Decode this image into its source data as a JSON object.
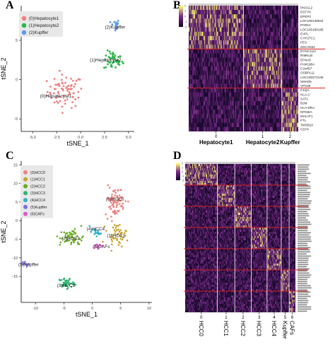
{
  "panels": {
    "a": "A",
    "b": "B",
    "c": "C",
    "d": "D"
  },
  "colors": {
    "legend_box": "#e8e8e8",
    "hm_low": "#1a0a2e",
    "hm_mid": "#7a2a8a",
    "hm_high": "#f5f56a",
    "divider": "#d42020"
  },
  "chart_data": [
    {
      "type": "scatter",
      "panel": "A",
      "xlabel": "tSNE_1",
      "ylabel": "tSNE_2",
      "xlim": [
        -6.2,
        5.6
      ],
      "ylim": [
        -6.6,
        9.4
      ],
      "xticks": [
        -5.0,
        -2.5,
        0.0,
        2.5,
        5.0
      ],
      "xtick_labels": [
        "-5.0",
        "-2.5",
        "0.0",
        "2.5",
        "5.0"
      ],
      "yticks": [
        -5,
        0,
        5
      ],
      "ytick_labels": [
        "-5",
        "0",
        "5"
      ],
      "legend_position": "top-left",
      "series": [
        {
          "name": "(0)Hepatocyte1",
          "color": "#f08080",
          "center": [
            -1.6,
            -1.5
          ],
          "spread": [
            1.7,
            1.9
          ],
          "n": 75
        },
        {
          "name": "(1)Hepatocyte2",
          "color": "#2db84a",
          "center": [
            3.4,
            2.4
          ],
          "spread": [
            0.9,
            1.1
          ],
          "n": 45
        },
        {
          "name": "(2)Kupffer",
          "color": "#5e9be8",
          "center": [
            3.6,
            6.9
          ],
          "spread": [
            0.4,
            0.7
          ],
          "n": 20
        }
      ],
      "cluster_labels": [
        {
          "text": "(0)Hepatocyte1",
          "x": -2.6,
          "y": -2.3
        },
        {
          "text": "(1)Hepatocyte2",
          "x": 2.6,
          "y": 2.3
        },
        {
          "text": "(2)Kupffer",
          "x": 3.6,
          "y": 6.5
        }
      ]
    },
    {
      "type": "heatmap",
      "panel": "B",
      "groups": [
        "0",
        "1",
        "2"
      ],
      "group_labels": [
        "Hepatocyte1",
        "Hepatocyte2",
        "Kupffer"
      ],
      "group_widths": [
        0.5,
        0.35,
        0.15
      ],
      "genes": [
        "PKD1L2",
        "DSTYK",
        "DPEP2",
        "LOC100136522",
        "PARK2",
        "LOC100190195",
        "EVPL",
        "CYP27C1",
        "FES",
        "ZSCAN22",
        "DYNC1LI2",
        "RIMKLB",
        "EFNA5",
        "FAM198A",
        "C2orf67",
        "OSBPL11",
        "LOC100272146",
        "SMAD5",
        "VPS36",
        "C1QA",
        "HLA-C",
        "SAT1",
        "B2M",
        "HLA-DRA",
        "NFKBIA",
        "MALAT1",
        "FTL",
        "TMSB10",
        "CD74"
      ],
      "gene_blocks": [
        10,
        9,
        10
      ],
      "legend_ticks": [
        "2",
        "1",
        "0",
        "-1",
        "-2"
      ]
    },
    {
      "type": "scatter",
      "panel": "C",
      "xlabel": "tSNE_1",
      "ylabel": "tSNE_2",
      "xlim": [
        -12.5,
        10.5
      ],
      "ylim": [
        -22,
        16
      ],
      "xticks": [
        -10,
        -5,
        0,
        5,
        10
      ],
      "xtick_labels": [
        "-10",
        "-5",
        "0",
        "5",
        "10"
      ],
      "yticks": [
        -15,
        -10,
        -5,
        0,
        5,
        10,
        15
      ],
      "ytick_labels": [
        "-15",
        "-10",
        "-5",
        "0",
        "5",
        "10",
        "15"
      ],
      "legend_position": "top-left",
      "series": [
        {
          "name": "(0)HCC0",
          "color": "#f08080",
          "center": [
            4.0,
            5.2
          ],
          "spread": [
            1.6,
            3.6
          ],
          "n": 80
        },
        {
          "name": "(1)HCC1",
          "color": "#c9a227",
          "center": [
            4.3,
            -3.8
          ],
          "spread": [
            1.6,
            2.6
          ],
          "n": 45
        },
        {
          "name": "(2)HCC2",
          "color": "#6aab1f",
          "center": [
            -3.6,
            -4.6
          ],
          "spread": [
            1.9,
            2.1
          ],
          "n": 55
        },
        {
          "name": "(3)HCC3",
          "color": "#2bb673",
          "center": [
            -4.6,
            -16.8
          ],
          "spread": [
            1.2,
            1.3
          ],
          "n": 40
        },
        {
          "name": "(4)HCC4",
          "color": "#2fb3c9",
          "center": [
            0.5,
            -3.2
          ],
          "spread": [
            0.9,
            0.9
          ],
          "n": 20
        },
        {
          "name": "(5)Kupffer",
          "color": "#7b6fe0",
          "center": [
            -11.6,
            -11.7
          ],
          "spread": [
            0.7,
            0.5
          ],
          "n": 12
        },
        {
          "name": "(6)CAFs",
          "color": "#e056c6",
          "center": [
            1.2,
            -7.0
          ],
          "spread": [
            0.8,
            0.6
          ],
          "n": 10
        }
      ],
      "cluster_labels": [
        {
          "text": "(0)HCC0",
          "x": 4.0,
          "y": 5.4
        },
        {
          "text": "(1)HCC1",
          "x": 4.2,
          "y": -4.4
        },
        {
          "text": "(2)HCC2",
          "x": -3.8,
          "y": -5.2
        },
        {
          "text": "(3)HCC3",
          "x": -4.6,
          "y": -17.8
        },
        {
          "text": "(4)HCC4",
          "x": 0.6,
          "y": -2.6
        },
        {
          "text": "(5)Kupffer",
          "x": -11.2,
          "y": -12.2
        },
        {
          "text": "(6)CAFs",
          "x": 1.6,
          "y": -7.4
        }
      ]
    },
    {
      "type": "heatmap",
      "panel": "D",
      "groups": [
        "0",
        "1",
        "2",
        "3",
        "4",
        "5",
        "6"
      ],
      "group_labels": [
        "HCC0",
        "HCC1",
        "HCC2",
        "HCC3",
        "HCC4",
        "Kupffer",
        "CAFs"
      ],
      "group_widths": [
        0.29,
        0.16,
        0.15,
        0.14,
        0.13,
        0.07,
        0.06
      ],
      "gene_rows": 70,
      "gene_blocks": [
        10,
        10,
        10,
        10,
        10,
        10,
        10
      ],
      "legend_ticks": [
        "2",
        "1",
        "0",
        "-1",
        "-2"
      ]
    }
  ]
}
